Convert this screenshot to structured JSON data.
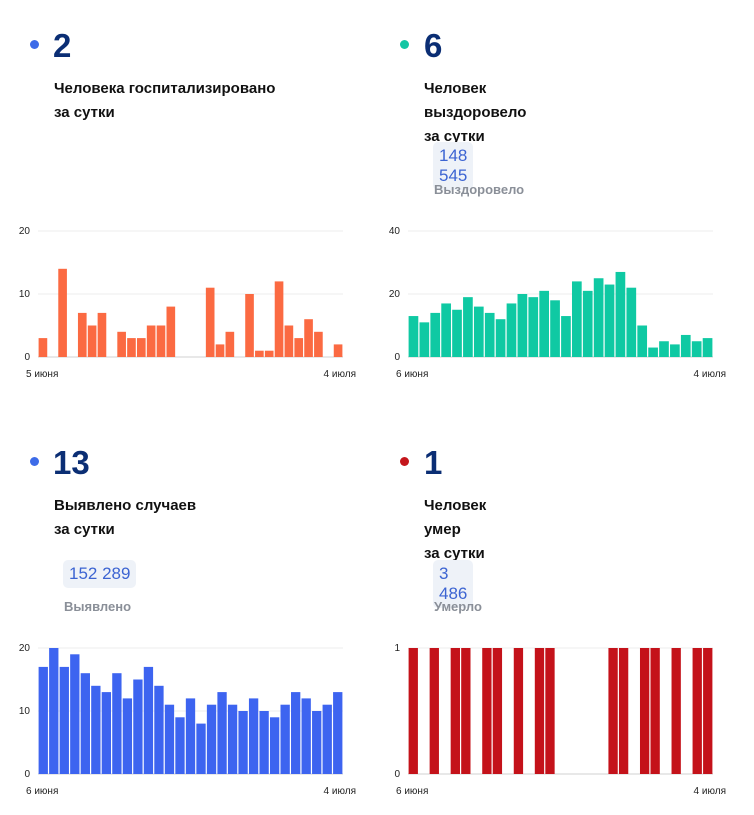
{
  "panels": [
    {
      "value": "2",
      "caption_line1": "Человека госпитализировано",
      "caption_line2": "за сутки",
      "dot_color": "#3d6be8"
    },
    {
      "value": "6",
      "caption_line1": "Человек выздоровело",
      "caption_line2": "за сутки",
      "total": "148 545",
      "total_label": "Выздоровело",
      "dot_color": "#14c6a4"
    },
    {
      "value": "13",
      "caption_line1": "Выявлено случаев",
      "caption_line2": "за сутки",
      "total": "152 289",
      "total_label": "Выявлено",
      "dot_color": "#3d6be8"
    },
    {
      "value": "1",
      "caption_line1": "Человек умер",
      "caption_line2": "за сутки",
      "total": "3 486",
      "total_label": "Умерло",
      "dot_color": "#c4161c"
    }
  ],
  "chart_data": [
    {
      "type": "bar",
      "color": "#fb6a42",
      "ylim": [
        0,
        20
      ],
      "yticks": [
        "0",
        "10",
        "20"
      ],
      "x_start_label": "5 июня",
      "x_end_label": "4 июля",
      "values": [
        3,
        0,
        14,
        0,
        7,
        5,
        7,
        0,
        4,
        3,
        3,
        5,
        5,
        8,
        0,
        0,
        0,
        11,
        2,
        4,
        0,
        10,
        1,
        1,
        12,
        5,
        3,
        6,
        4,
        0,
        2
      ]
    },
    {
      "type": "bar",
      "color": "#0fc9a3",
      "ylim": [
        0,
        40
      ],
      "yticks": [
        "0",
        "20",
        "40"
      ],
      "x_start_label": "6 июня",
      "x_end_label": "4 июля",
      "values": [
        13,
        11,
        14,
        17,
        15,
        19,
        16,
        14,
        12,
        17,
        20,
        19,
        21,
        18,
        13,
        24,
        21,
        25,
        23,
        27,
        22,
        10,
        3,
        5,
        4,
        7,
        5,
        6
      ]
    },
    {
      "type": "bar",
      "color": "#3d64f0",
      "ylim": [
        0,
        20
      ],
      "yticks": [
        "0",
        "10",
        "20"
      ],
      "x_start_label": "6 июня",
      "x_end_label": "4 июля",
      "values": [
        17,
        20,
        17,
        19,
        16,
        14,
        13,
        16,
        12,
        15,
        17,
        14,
        11,
        9,
        12,
        8,
        11,
        13,
        11,
        10,
        12,
        10,
        9,
        11,
        13,
        12,
        10,
        11,
        13
      ]
    },
    {
      "type": "bar",
      "color": "#c4121a",
      "ylim": [
        0,
        1
      ],
      "yticks": [
        "0",
        "1"
      ],
      "x_start_label": "6 июня",
      "x_end_label": "4 июля",
      "values": [
        1,
        0,
        1,
        0,
        1,
        1,
        0,
        1,
        1,
        0,
        1,
        0,
        1,
        1,
        0,
        0,
        0,
        0,
        0,
        1,
        1,
        0,
        1,
        1,
        0,
        1,
        0,
        1,
        1
      ]
    }
  ]
}
